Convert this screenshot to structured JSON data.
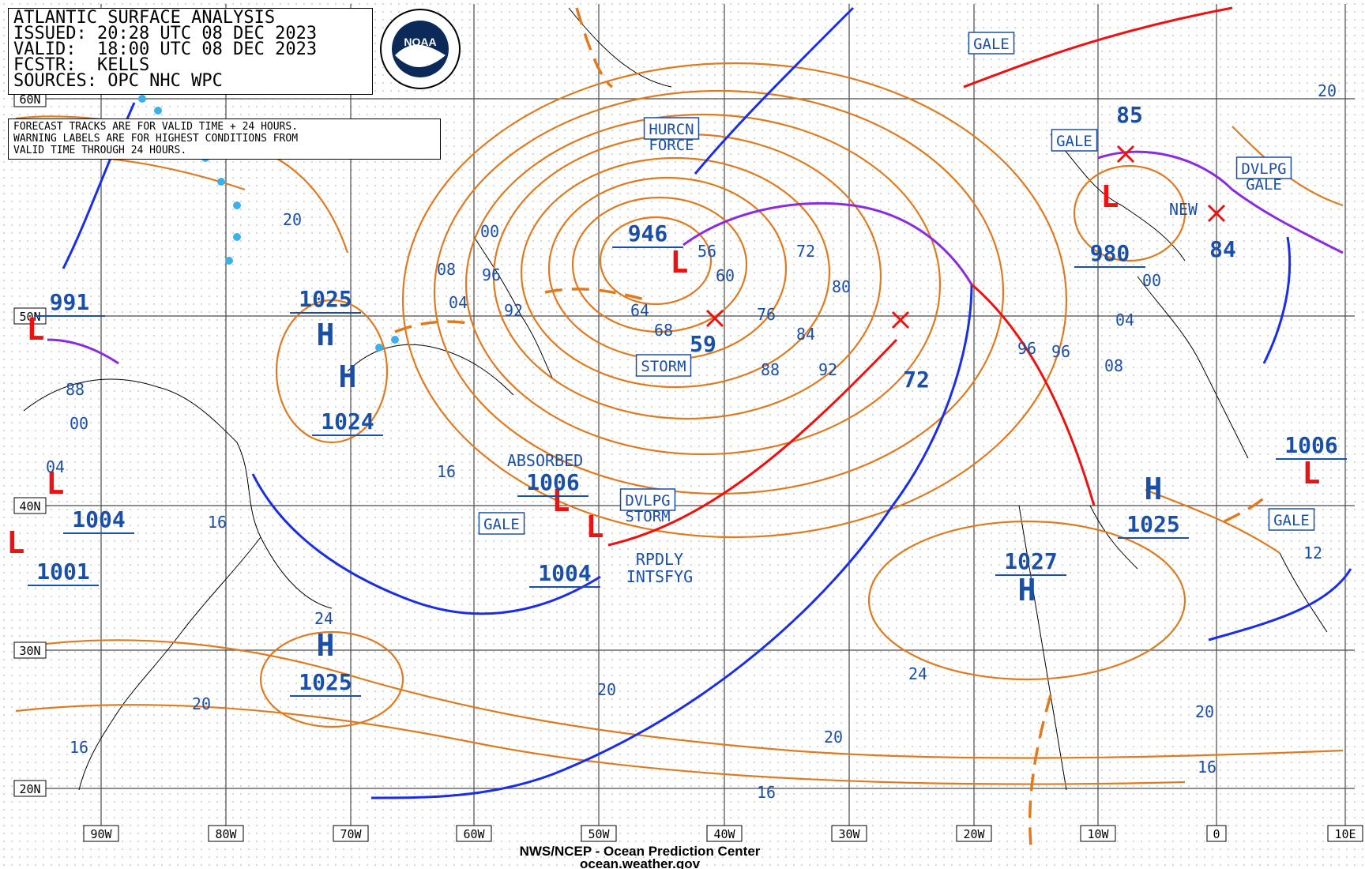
{
  "header": {
    "title": "ATLANTIC SURFACE ANALYSIS",
    "issued": "ISSUED: 20:28 UTC 08 DEC 2023",
    "valid": "VALID:  18:00 UTC 08 DEC 2023",
    "forecaster": "FCSTR:  KELLS",
    "sources": "SOURCES: OPC NHC WPC"
  },
  "note": {
    "line1": "FORECAST TRACKS ARE FOR VALID TIME + 24 HOURS.",
    "line2": "WARNING LABELS ARE FOR HIGHEST CONDITIONS FROM",
    "line3": "VALID TIME THROUGH 24 HOURS."
  },
  "logo": {
    "text": "NOAA"
  },
  "footer": {
    "line1": "NWS/NCEP - Ocean Prediction Center",
    "line2": "ocean.weather.gov"
  },
  "lat_labels": [
    "60N",
    "50N",
    "40N",
    "30N",
    "20N"
  ],
  "lon_labels": [
    "90W",
    "80W",
    "70W",
    "60W",
    "50W",
    "40W",
    "30W",
    "20W",
    "10W",
    "0",
    "10E"
  ],
  "pressure_centers": [
    {
      "symbol": "L",
      "value": "946"
    },
    {
      "symbol": "L",
      "value": "980"
    },
    {
      "symbol": "L",
      "value": "991"
    },
    {
      "symbol": "L",
      "value": "1004"
    },
    {
      "symbol": "L",
      "value": "1001"
    },
    {
      "symbol": "L",
      "value": "1006"
    },
    {
      "symbol": "L",
      "value": "1004"
    },
    {
      "symbol": "L",
      "value": "1006"
    },
    {
      "symbol": "H",
      "value": "1025"
    },
    {
      "symbol": "H",
      "value": "1024"
    },
    {
      "symbol": "H",
      "value": "1025"
    },
    {
      "symbol": "H",
      "value": "1025"
    },
    {
      "symbol": "H",
      "value": "1027"
    }
  ],
  "forecast_values": [
    "59",
    "72",
    "85",
    "84"
  ],
  "warnings": [
    "GALE",
    "HURCN FORCE",
    "STORM",
    "GALE",
    "DVLPG GALE",
    "DVLPG STORM",
    "GALE",
    "GALE"
  ],
  "annotations": [
    "ABSORBED",
    "RPDLY INTSFYG",
    "NEW"
  ],
  "isobar_labels": [
    "20",
    "00",
    "08",
    "04",
    "96",
    "92",
    "56",
    "60",
    "64",
    "68",
    "72",
    "80",
    "76",
    "84",
    "88",
    "92",
    "96",
    "16",
    "16",
    "24",
    "20",
    "20",
    "16",
    "24",
    "20",
    "16",
    "20",
    "16",
    "12",
    "08",
    "04",
    "00",
    "96",
    "04",
    "00",
    "88",
    "20"
  ],
  "colors": {
    "isobar": "#e07a1e",
    "grid": "#4a4a4a",
    "label": "#1a4fa8",
    "warm_front": "#ee1111",
    "cold_front": "#1a2ee8",
    "occluded_front": "#8a2be2",
    "low": "#ee1111",
    "high": "#1a4fa8",
    "coast": "#000000"
  }
}
